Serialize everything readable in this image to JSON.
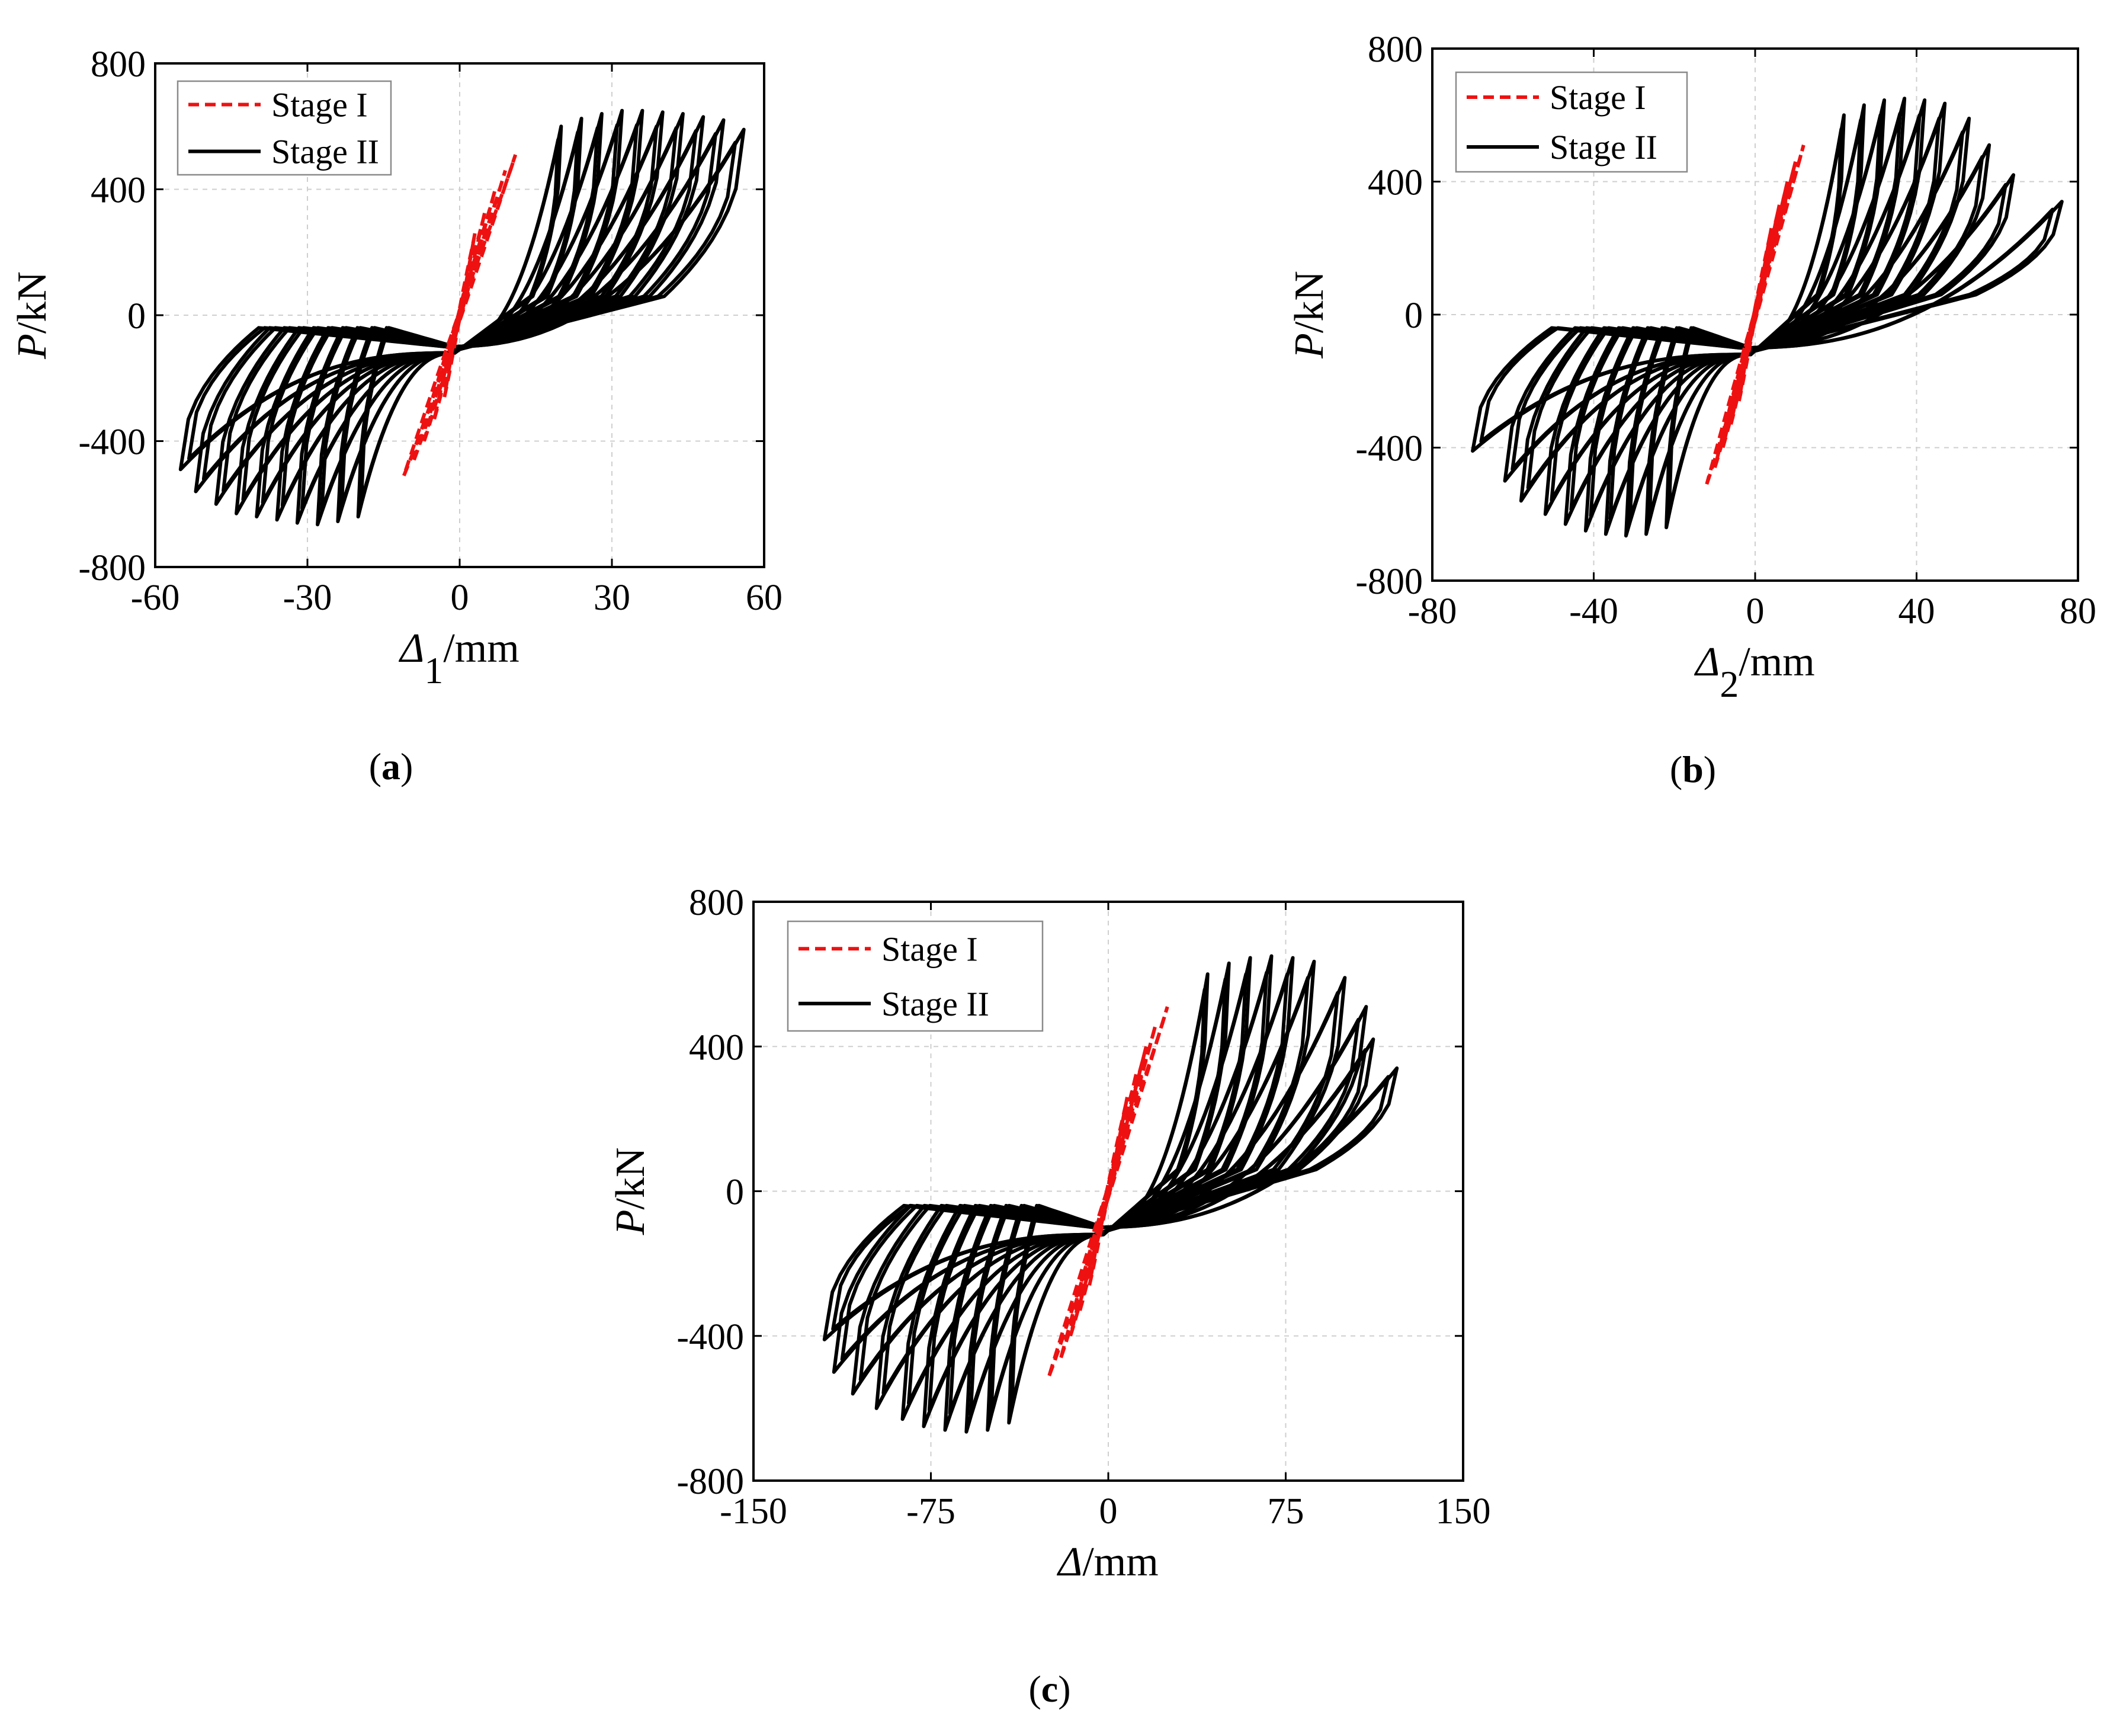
{
  "chart_data": [
    {
      "type": "line",
      "panel": "a",
      "panel_label": "a",
      "xlabel_sym": "Δ",
      "xlabel_sub": "1",
      "xlabel_unit": "/mm",
      "ylabel_sym": "P",
      "ylabel_unit": "/kN",
      "xlim": [
        -60,
        60
      ],
      "ylim": [
        -800,
        800
      ],
      "xticks": [
        -60,
        -30,
        0,
        30,
        60
      ],
      "yticks": [
        -800,
        -400,
        0,
        400,
        800
      ],
      "legend": [
        "Stage I",
        "Stage II"
      ],
      "grid": true,
      "series": [
        {
          "name": "Stage I",
          "style": "dashed",
          "color": "#ee1111",
          "amplitudes_mm": [
            3,
            5,
            7,
            9,
            11
          ],
          "peak_load_kN": [
            260,
            330,
            400,
            460,
            510
          ]
        },
        {
          "name": "Stage II",
          "style": "solid",
          "color": "#000000",
          "amplitudes_mm": [
            20,
            24,
            28,
            32,
            36,
            40,
            44,
            48,
            52,
            56
          ],
          "peak_load_kN": [
            600,
            625,
            640,
            650,
            650,
            645,
            640,
            630,
            620,
            590
          ],
          "trough_load_kN": [
            -640,
            -655,
            -665,
            -660,
            -650,
            -640,
            -630,
            -600,
            -560,
            -490
          ],
          "min_disp_mm": [
            -20,
            -24,
            -28,
            -32,
            -36,
            -40,
            -44,
            -48,
            -52,
            -55
          ]
        }
      ]
    },
    {
      "type": "line",
      "panel": "b",
      "panel_label": "b",
      "xlabel_sym": "Δ",
      "xlabel_sub": "2",
      "xlabel_unit": "/mm",
      "ylabel_sym": "P",
      "ylabel_unit": "/kN",
      "xlim": [
        -80,
        80
      ],
      "ylim": [
        -800,
        800
      ],
      "xticks": [
        -80,
        -40,
        0,
        40,
        80
      ],
      "yticks": [
        -800,
        -400,
        0,
        400,
        800
      ],
      "legend": [
        "Stage I",
        "Stage II"
      ],
      "grid": true,
      "series": [
        {
          "name": "Stage I",
          "style": "dashed",
          "color": "#ee1111",
          "amplitudes_mm": [
            4,
            6,
            8,
            10,
            12
          ],
          "peak_load_kN": [
            260,
            330,
            400,
            460,
            510
          ]
        },
        {
          "name": "Stage II",
          "style": "solid",
          "color": "#000000",
          "amplitudes_mm": [
            22,
            27,
            32,
            37,
            42,
            47,
            53,
            58,
            64,
            76
          ],
          "peak_load_kN": [
            600,
            630,
            645,
            650,
            645,
            635,
            590,
            510,
            420,
            340
          ],
          "trough_load_kN": [
            -640,
            -660,
            -665,
            -660,
            -650,
            -630,
            -600,
            -560,
            -500,
            -410
          ],
          "min_disp_mm": [
            -22,
            -27,
            -32,
            -37,
            -42,
            -47,
            -52,
            -58,
            -62,
            -70
          ]
        }
      ]
    },
    {
      "type": "line",
      "panel": "c",
      "panel_label": "c",
      "xlabel_sym": "Δ",
      "xlabel_sub": "",
      "xlabel_unit": "/mm",
      "ylabel_sym": "P",
      "ylabel_unit": "/kN",
      "xlim": [
        -150,
        150
      ],
      "ylim": [
        -800,
        800
      ],
      "xticks": [
        -150,
        -75,
        0,
        75,
        150
      ],
      "yticks": [
        -800,
        -400,
        0,
        400,
        800
      ],
      "legend": [
        "Stage I",
        "Stage II"
      ],
      "grid": true,
      "series": [
        {
          "name": "Stage I",
          "style": "dashed",
          "color": "#ee1111",
          "amplitudes_mm": [
            8,
            12,
            16,
            20,
            25
          ],
          "peak_load_kN": [
            260,
            330,
            400,
            460,
            510
          ]
        },
        {
          "name": "Stage II",
          "style": "solid",
          "color": "#000000",
          "amplitudes_mm": [
            42,
            51,
            60,
            69,
            78,
            87,
            100,
            109,
            112,
            122
          ],
          "peak_load_kN": [
            600,
            630,
            645,
            650,
            645,
            635,
            590,
            510,
            420,
            340
          ],
          "trough_load_kN": [
            -640,
            -660,
            -665,
            -660,
            -650,
            -630,
            -600,
            -560,
            -500,
            -410
          ],
          "min_disp_mm": [
            -42,
            -51,
            -60,
            -69,
            -78,
            -87,
            -98,
            -108,
            -116,
            -120
          ]
        }
      ]
    }
  ]
}
